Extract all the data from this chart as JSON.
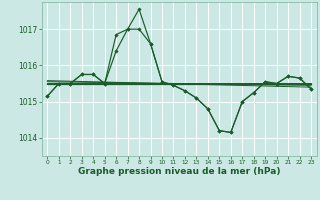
{
  "bg_color": "#cce8e4",
  "grid_color": "#b0d8d2",
  "line_color": "#1a5c2a",
  "xlabel": "Graphe pression niveau de la mer (hPa)",
  "xlabel_fontsize": 6.5,
  "xlim": [
    -0.5,
    23.5
  ],
  "ylim": [
    1013.5,
    1017.75
  ],
  "yticks": [
    1014,
    1015,
    1016,
    1017
  ],
  "xticks": [
    0,
    1,
    2,
    3,
    4,
    5,
    6,
    7,
    8,
    9,
    10,
    11,
    12,
    13,
    14,
    15,
    16,
    17,
    18,
    19,
    20,
    21,
    22,
    23
  ],
  "series1_x": [
    0,
    1,
    2,
    3,
    4,
    5,
    6,
    7,
    8,
    9,
    10,
    11,
    12,
    13,
    14,
    15,
    16,
    17,
    18,
    19,
    20,
    21,
    22,
    23
  ],
  "series1_y": [
    1015.15,
    1015.5,
    1015.5,
    1015.75,
    1015.75,
    1015.5,
    1016.85,
    1017.0,
    1017.55,
    1016.6,
    1015.55,
    1015.45,
    1015.3,
    1015.1,
    1014.8,
    1014.2,
    1014.15,
    1015.0,
    1015.25,
    1015.55,
    1015.5,
    1015.7,
    1015.65,
    1015.35
  ],
  "series2_x": [
    0,
    1,
    2,
    3,
    4,
    5,
    6,
    7,
    8,
    9,
    10,
    11,
    12,
    13,
    14,
    15,
    16,
    17,
    18,
    19,
    20,
    21,
    22,
    23
  ],
  "series2_y": [
    1015.15,
    1015.5,
    1015.5,
    1015.75,
    1015.75,
    1015.5,
    1016.4,
    1017.0,
    1017.0,
    1016.6,
    1015.55,
    1015.45,
    1015.3,
    1015.1,
    1014.8,
    1014.2,
    1014.15,
    1015.0,
    1015.25,
    1015.55,
    1015.5,
    1015.7,
    1015.65,
    1015.35
  ],
  "trend1_x": [
    0,
    23
  ],
  "trend1_y": [
    1015.5,
    1015.5
  ],
  "trend2_x": [
    0,
    23
  ],
  "trend2_y": [
    1015.55,
    1015.45
  ],
  "trend3_x": [
    0,
    23
  ],
  "trend3_y": [
    1015.52,
    1015.52
  ],
  "trend4_x": [
    0,
    23
  ],
  "trend4_y": [
    1015.58,
    1015.4
  ]
}
